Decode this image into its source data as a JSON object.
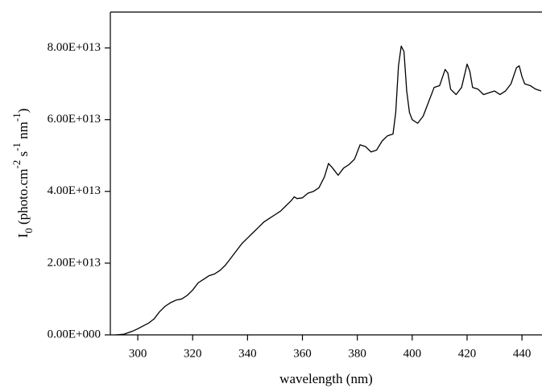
{
  "chart_data": {
    "type": "line",
    "x_label": "wavelength (nm)",
    "y_label_parts": [
      "I",
      "0",
      " (photo.cm",
      "-2",
      " s",
      "-1",
      " nm",
      "-1",
      ")"
    ],
    "x": [
      292,
      295,
      298,
      300,
      302,
      304,
      306,
      308,
      310,
      312,
      314,
      316,
      318,
      320,
      322,
      324,
      326,
      328,
      330,
      332,
      334,
      336,
      338,
      340,
      342,
      344,
      346,
      348,
      350,
      352,
      354,
      356,
      357,
      358,
      360,
      362,
      364,
      366,
      368,
      369.5,
      371,
      373,
      375,
      377,
      379,
      381,
      383,
      385,
      387,
      389,
      391,
      393,
      394,
      395,
      396,
      397,
      398,
      399,
      400,
      402,
      404,
      406,
      408,
      410,
      412,
      413,
      414,
      416,
      418,
      420,
      421,
      422,
      424,
      426,
      428,
      430,
      432,
      434,
      436,
      438,
      439,
      440,
      441,
      443,
      445,
      447
    ],
    "series": [
      {
        "color": "#000000",
        "values": [
          0,
          200000000000.0,
          1000000000000.0,
          1700000000000.0,
          2500000000000.0,
          3300000000000.0,
          4500000000000.0,
          6500000000000.0,
          8000000000000.0,
          9000000000000.0,
          9700000000000.0,
          10000000000000.0,
          11000000000000.0,
          12500000000000.0,
          14500000000000.0,
          15500000000000.0,
          16500000000000.0,
          17000000000000.0,
          18000000000000.0,
          19500000000000.0,
          21500000000000.0,
          23500000000000.0,
          25500000000000.0,
          27000000000000.0,
          28500000000000.0,
          30000000000000.0,
          31500000000000.0,
          32500000000000.0,
          33500000000000.0,
          34500000000000.0,
          36000000000000.0,
          37500000000000.0,
          38500000000000.0,
          38000000000000.0,
          38200000000000.0,
          39500000000000.0,
          40000000000000.0,
          41000000000000.0,
          44000000000000.0,
          47800000000000.0,
          46500000000000.0,
          44500000000000.0,
          46500000000000.0,
          47500000000000.0,
          49000000000000.0,
          53000000000000.0,
          52500000000000.0,
          51000000000000.0,
          51500000000000.0,
          54000000000000.0,
          55500000000000.0,
          56000000000000.0,
          62000000000000.0,
          75000000000000.0,
          80500000000000.0,
          79000000000000.0,
          68000000000000.0,
          62000000000000.0,
          60000000000000.0,
          59000000000000.0,
          61000000000000.0,
          65000000000000.0,
          69000000000000.0,
          69500000000000.0,
          74000000000000.0,
          73000000000000.0,
          68500000000000.0,
          67000000000000.0,
          69000000000000.0,
          75500000000000.0,
          73500000000000.0,
          69000000000000.0,
          68500000000000.0,
          67000000000000.0,
          67500000000000.0,
          68000000000000.0,
          67000000000000.0,
          68000000000000.0,
          70000000000000.0,
          74500000000000.0,
          75000000000000.0,
          72000000000000.0,
          70000000000000.0,
          69500000000000.0,
          68500000000000.0,
          68000000000000.0
        ]
      }
    ],
    "xlim": [
      290,
      447.3
    ],
    "xticks": [
      300,
      320,
      340,
      360,
      380,
      400,
      420,
      440
    ],
    "ylim": [
      0,
      90000000000000.0
    ],
    "yticks": [
      {
        "value": 0,
        "label": "0.00E+000"
      },
      {
        "value": 20000000000000.0,
        "label": "2.00E+013"
      },
      {
        "value": 40000000000000.0,
        "label": "4.00E+013"
      },
      {
        "value": 60000000000000.0,
        "label": "6.00E+013"
      },
      {
        "value": 80000000000000.0,
        "label": "8.00E+013"
      }
    ],
    "grid": false
  }
}
